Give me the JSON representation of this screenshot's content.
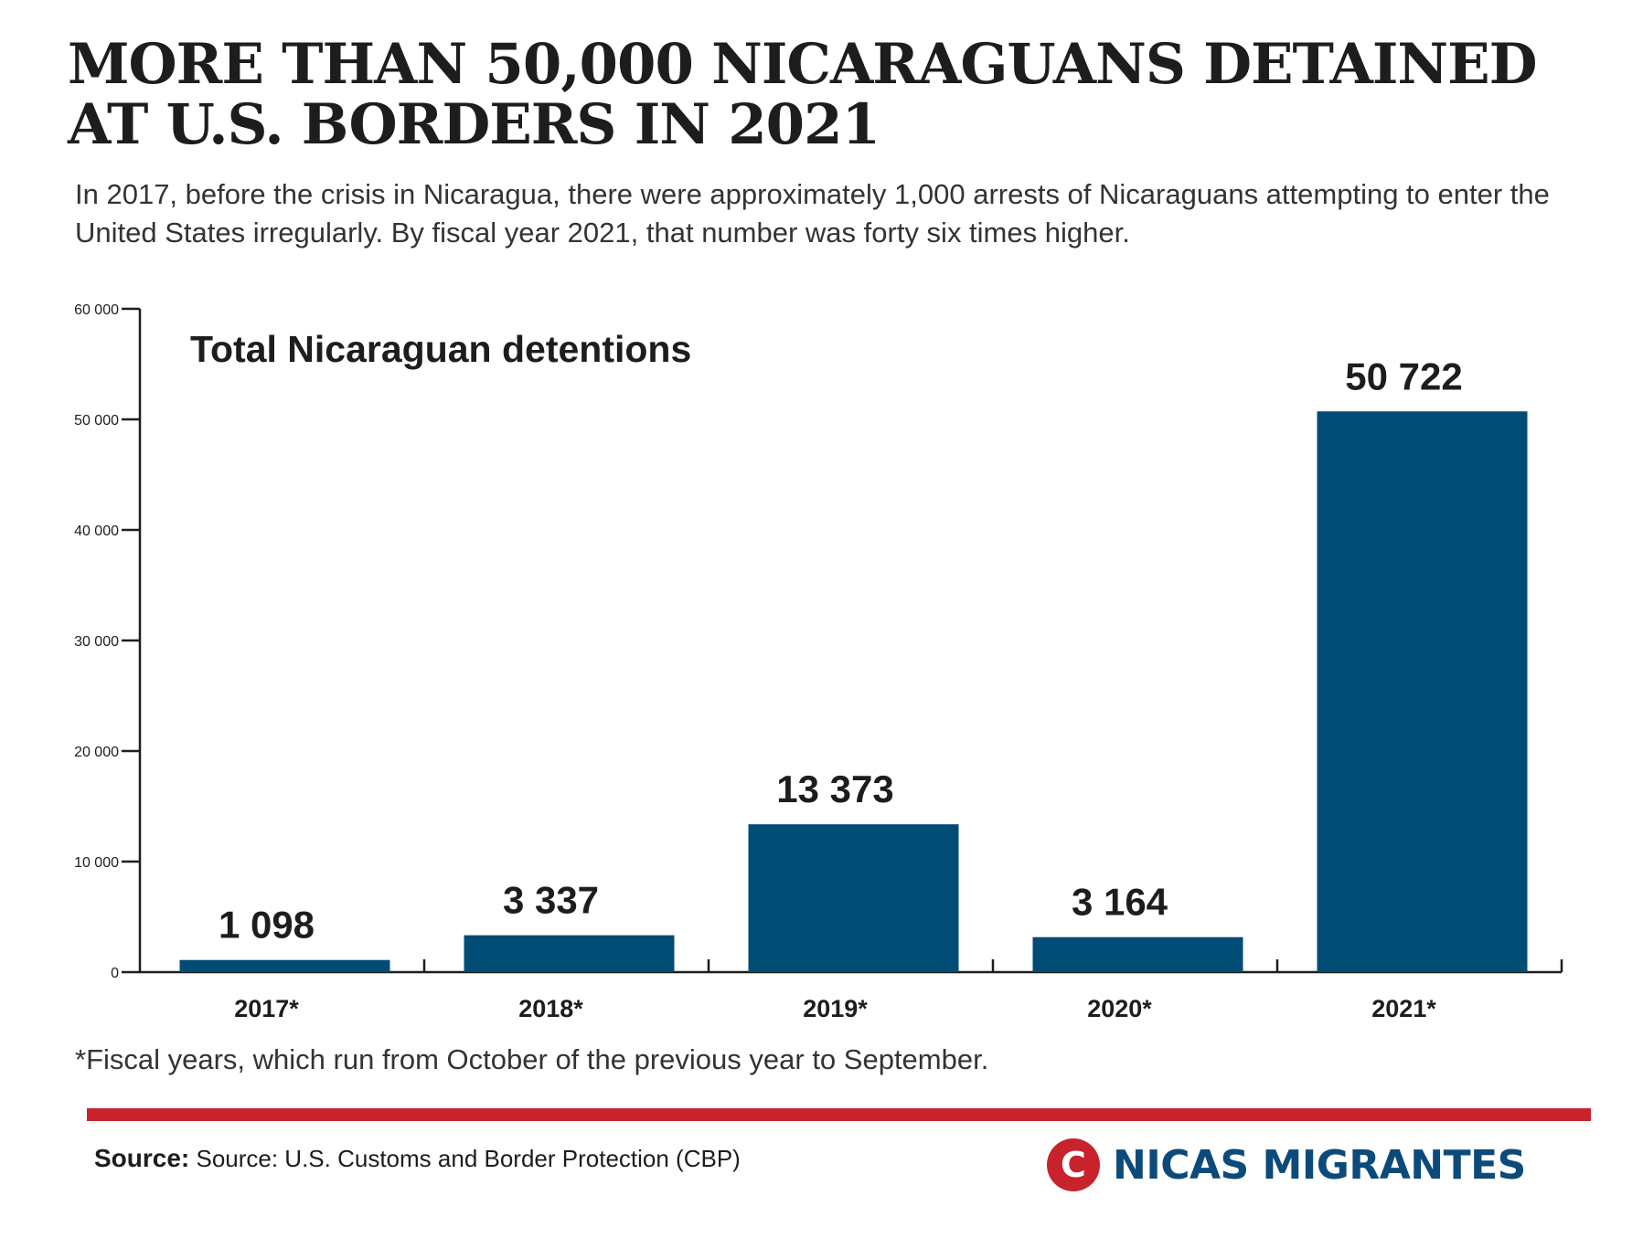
{
  "title": "MORE THAN 50,000 NICARAGUANS DETAINED AT U.S. BORDERS IN 2021",
  "subtitle": "In 2017, before the crisis in Nicaragua, there were approximately 1,000 arrests of Nicaraguans attempting to enter the United States irregularly. By fiscal year 2021, that number was forty six times higher.",
  "footnote": "*Fiscal years, which run from October of the previous year to September.",
  "source": {
    "label": "Source:",
    "text": "Source: U.S. Customs and Border Protection (CBP)"
  },
  "logo": {
    "mark": "C",
    "text": "NICAS MIGRANTES"
  },
  "colors": {
    "bar": "#004c74",
    "accent": "#c8232c",
    "logo_text": "#0c4a7a",
    "text": "#1d1d1b"
  },
  "chart_data": {
    "type": "bar",
    "title": "Total Nicaraguan detentions",
    "categories": [
      "2017*",
      "2018*",
      "2019*",
      "2020*",
      "2021*"
    ],
    "values": [
      1098,
      3337,
      13373,
      3164,
      50722
    ],
    "value_labels": [
      "1 098",
      "3 337",
      "13 373",
      "3 164",
      "50 722"
    ],
    "ylim": [
      0,
      60000
    ],
    "yticks": [
      0,
      10000,
      20000,
      30000,
      40000,
      50000,
      60000
    ],
    "ytick_labels": [
      "0",
      "10 000",
      "20 000",
      "30 000",
      "40 000",
      "50 000",
      "60 000"
    ],
    "xlabel": "",
    "ylabel": "",
    "grid": false,
    "legend": "none"
  }
}
